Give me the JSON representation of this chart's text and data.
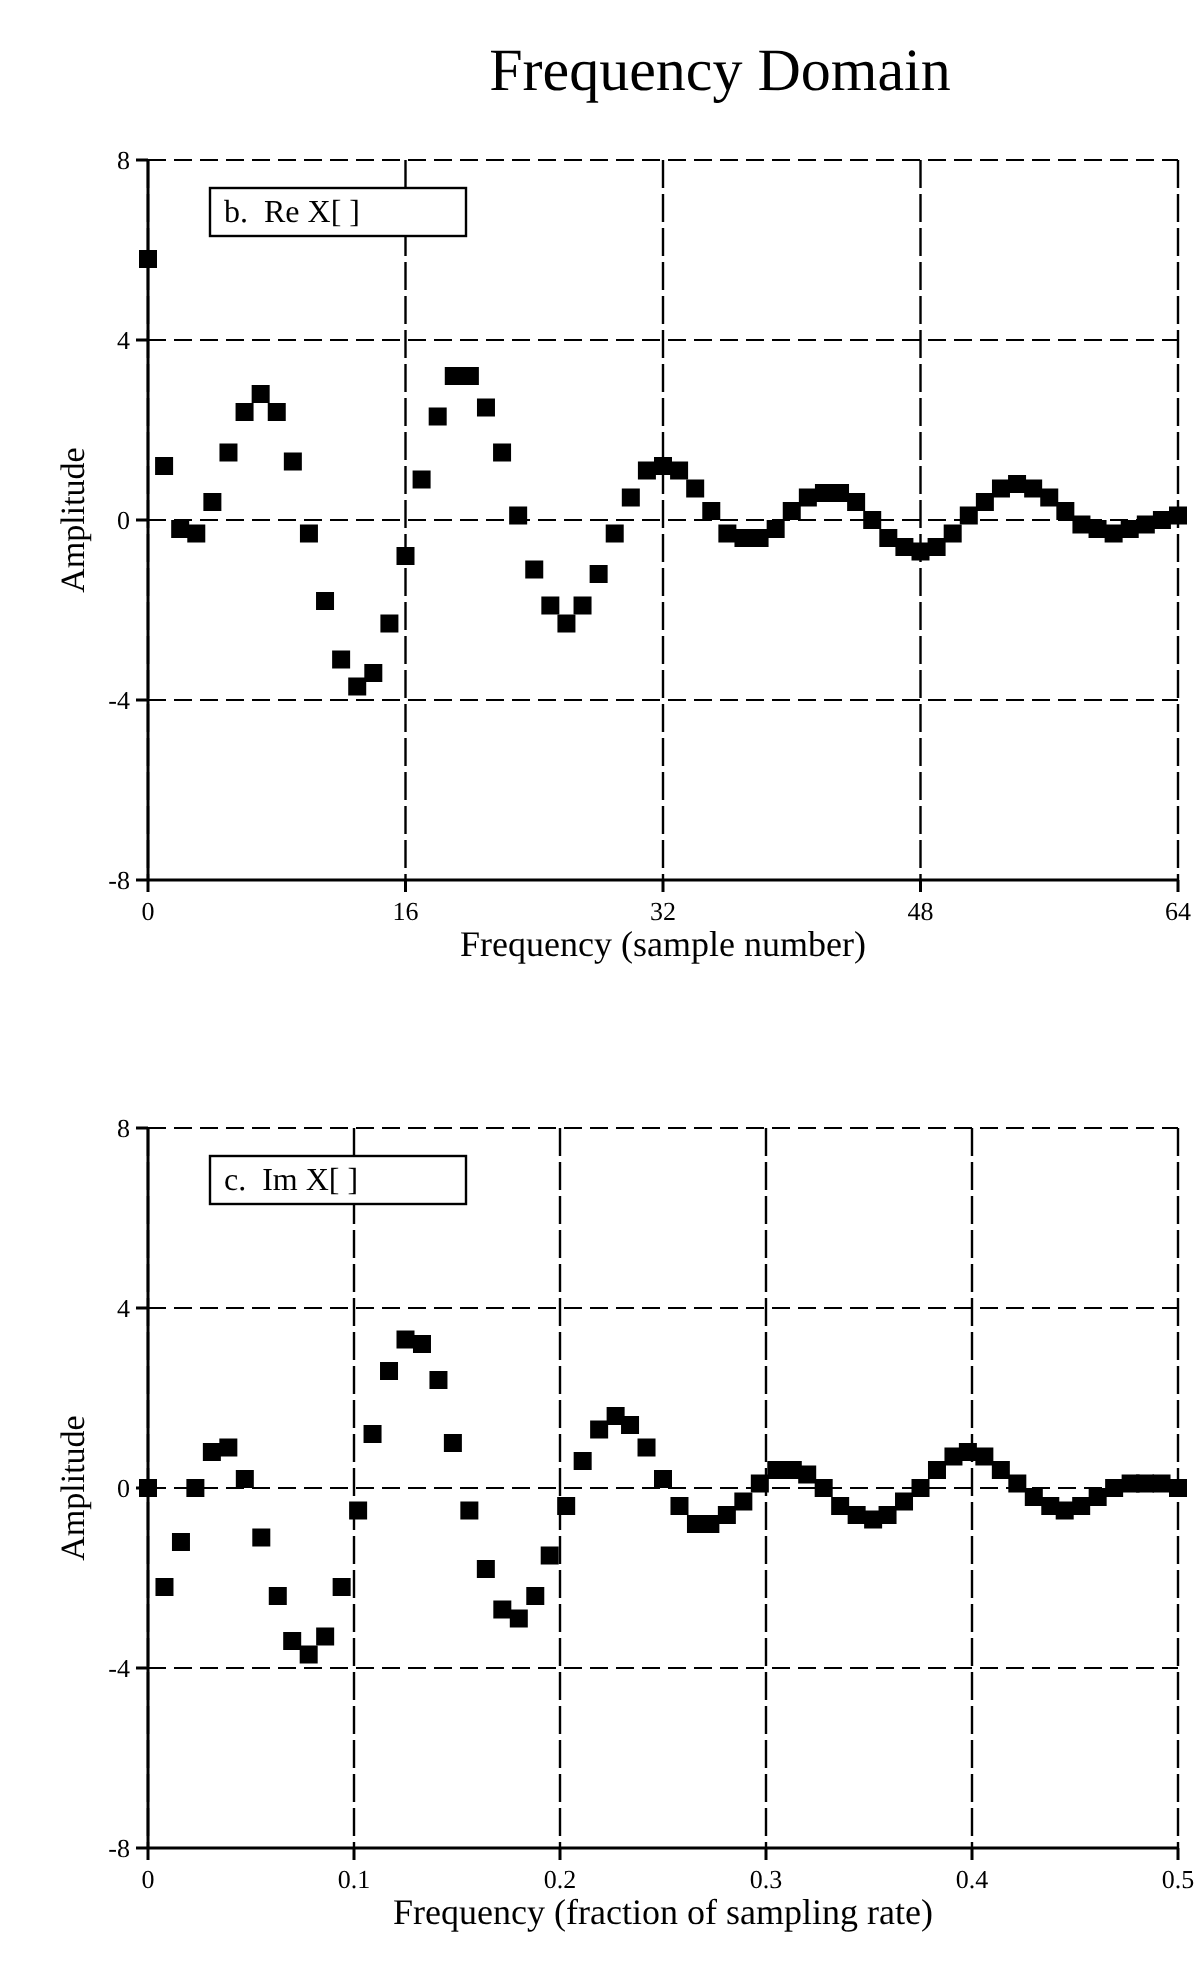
{
  "chart_data": [
    {
      "type": "scatter",
      "title": "Frequency Domain",
      "xlabel": "Frequency (sample number)",
      "ylabel": "Amplitude",
      "annotations": [
        "b.  Re X[ ]"
      ],
      "marker": "square",
      "grid": true,
      "color": "#000000",
      "x": [
        0,
        1,
        2,
        3,
        4,
        5,
        6,
        7,
        8,
        9,
        10,
        11,
        12,
        13,
        14,
        15,
        16,
        17,
        18,
        19,
        20,
        21,
        22,
        23,
        24,
        25,
        26,
        27,
        28,
        29,
        30,
        31,
        32,
        33,
        34,
        35,
        36,
        37,
        38,
        39,
        40,
        41,
        42,
        43,
        44,
        45,
        46,
        47,
        48,
        49,
        50,
        51,
        52,
        53,
        54,
        55,
        56,
        57,
        58,
        59,
        60,
        61,
        62,
        63,
        64
      ],
      "values": [
        5.8,
        1.2,
        -0.2,
        -0.3,
        0.4,
        1.5,
        2.4,
        2.8,
        2.4,
        1.3,
        -0.3,
        -1.8,
        -3.1,
        -3.7,
        -3.4,
        -2.3,
        -0.8,
        0.9,
        2.3,
        3.2,
        3.2,
        2.5,
        1.5,
        0.1,
        -1.1,
        -1.9,
        -2.3,
        -1.9,
        -1.2,
        -0.3,
        0.5,
        1.1,
        1.2,
        1.1,
        0.7,
        0.2,
        -0.3,
        -0.4,
        -0.4,
        -0.2,
        0.2,
        0.5,
        0.6,
        0.6,
        0.4,
        0,
        -0.4,
        -0.6,
        -0.7,
        -0.6,
        -0.3,
        0.1,
        0.4,
        0.7,
        0.8,
        0.7,
        0.5,
        0.2,
        -0.1,
        -0.2,
        -0.3,
        -0.2,
        -0.1,
        0,
        0.1
      ],
      "xlim": [
        0,
        64
      ],
      "xticks": [
        0,
        16,
        32,
        48,
        64
      ],
      "ylim": [
        -8,
        8
      ],
      "yticks": [
        -8,
        -4,
        0,
        4,
        8
      ]
    },
    {
      "type": "scatter",
      "xlabel": "Frequency (fraction of sampling rate)",
      "ylabel": "Amplitude",
      "annotations": [
        "c.  Im X[ ]"
      ],
      "marker": "square",
      "grid": true,
      "color": "#000000",
      "x": [
        0,
        0.008,
        0.016,
        0.023,
        0.031,
        0.039,
        0.047,
        0.055,
        0.063,
        0.07,
        0.078,
        0.086,
        0.094,
        0.102,
        0.109,
        0.117,
        0.125,
        0.133,
        0.141,
        0.148,
        0.156,
        0.164,
        0.172,
        0.18,
        0.188,
        0.195,
        0.203,
        0.211,
        0.219,
        0.227,
        0.234,
        0.242,
        0.25,
        0.258,
        0.266,
        0.273,
        0.281,
        0.289,
        0.297,
        0.305,
        0.313,
        0.32,
        0.328,
        0.336,
        0.344,
        0.352,
        0.359,
        0.367,
        0.375,
        0.383,
        0.391,
        0.398,
        0.406,
        0.414,
        0.422,
        0.43,
        0.438,
        0.445,
        0.453,
        0.461,
        0.469,
        0.477,
        0.484,
        0.492,
        0.5
      ],
      "values": [
        0,
        -2.2,
        -1.2,
        0,
        0.8,
        0.9,
        0.2,
        -1.1,
        -2.4,
        -3.4,
        -3.7,
        -3.3,
        -2.2,
        -0.5,
        1.2,
        2.6,
        3.3,
        3.2,
        2.4,
        1,
        -0.5,
        -1.8,
        -2.7,
        -2.9,
        -2.4,
        -1.5,
        -0.4,
        0.6,
        1.3,
        1.6,
        1.4,
        0.9,
        0.2,
        -0.4,
        -0.8,
        -0.8,
        -0.6,
        -0.3,
        0.1,
        0.4,
        0.4,
        0.3,
        0,
        -0.4,
        -0.6,
        -0.7,
        -0.6,
        -0.3,
        0,
        0.4,
        0.7,
        0.8,
        0.7,
        0.4,
        0.1,
        -0.2,
        -0.4,
        -0.5,
        -0.4,
        -0.2,
        0,
        0.1,
        0.1,
        0.1,
        0
      ],
      "xlim": [
        0,
        0.5
      ],
      "xticks": [
        0,
        0.1,
        0.2,
        0.3,
        0.4,
        0.5
      ],
      "ylim": [
        -8,
        8
      ],
      "yticks": [
        -8,
        -4,
        0,
        4,
        8
      ]
    }
  ]
}
